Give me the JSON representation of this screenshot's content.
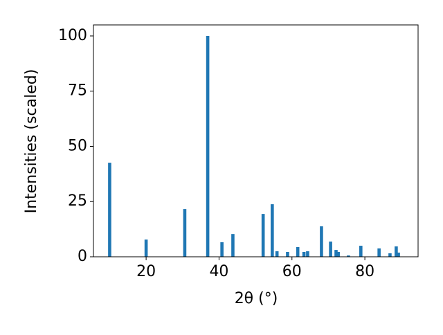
{
  "chart_data": {
    "type": "bar",
    "x": [
      10,
      20,
      30.6,
      36.9,
      40.8,
      43.8,
      52.1,
      54.6,
      55.9,
      58.8,
      61.6,
      63.3,
      64.3,
      68.1,
      70.6,
      72.1,
      72.7,
      75.5,
      78.9,
      83.9,
      86.9,
      88.6,
      89.2
    ],
    "values": [
      42.6,
      7.8,
      21.6,
      100,
      6.6,
      10.3,
      19.4,
      23.8,
      2.5,
      2.2,
      4.4,
      2.2,
      2.5,
      13.8,
      6.9,
      3.1,
      2.2,
      0.6,
      5.0,
      3.8,
      1.6,
      4.7,
      1.9
    ],
    "color": "#1f77b4",
    "xlabel": "2θ (°)",
    "ylabel": "Intensities (scaled)",
    "xlim": [
      5.55,
      94.6
    ],
    "ylim": [
      0,
      105
    ],
    "xticks": [
      20,
      40,
      60,
      80
    ],
    "yticks": [
      0,
      25,
      50,
      75,
      100
    ],
    "grid": false
  }
}
